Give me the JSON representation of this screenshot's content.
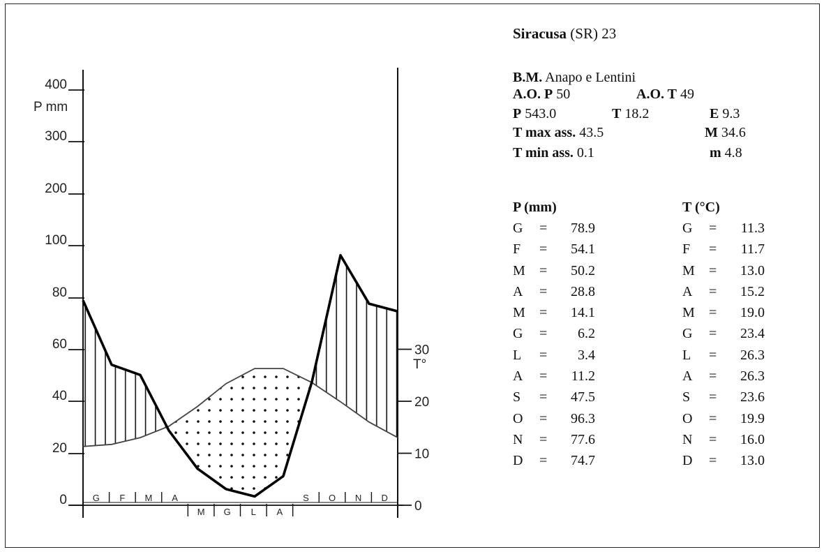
{
  "station": {
    "name": "Siracusa",
    "province": "(SR)",
    "number": "23",
    "bm_label": "B.M.",
    "bm_value": "Anapo e Lentini",
    "aop_label": "A.O. P",
    "aop_value": "50",
    "aot_label": "A.O. T",
    "aot_value": "49",
    "p_label": "P",
    "p_value": "543.0",
    "t_label": "T",
    "t_value": "18.2",
    "e_label": "E",
    "e_value": "9.3",
    "tmax_label": "T max ass.",
    "tmax_value": "43.5",
    "M_label": "M",
    "M_value": "34.6",
    "tmin_label": "T min ass.",
    "tmin_value": "0.1",
    "m_label": "m",
    "m_value": "4.8"
  },
  "tables": {
    "p_header": "P (mm)",
    "t_header": "T (°C)",
    "eq": "=",
    "months": [
      "G",
      "F",
      "M",
      "A",
      "M",
      "G",
      "L",
      "A",
      "S",
      "O",
      "N",
      "D"
    ],
    "p_values": [
      "78.9",
      "54.1",
      "50.2",
      "28.8",
      "14.1",
      "6.2",
      "3.4",
      "11.2",
      "47.5",
      "96.3",
      "77.6",
      "74.7"
    ],
    "t_values": [
      "11.3",
      "11.7",
      "13.0",
      "15.2",
      "19.0",
      "23.4",
      "26.3",
      "26.3",
      "23.6",
      "19.9",
      "16.0",
      "13.0"
    ]
  },
  "chart_data": {
    "type": "line",
    "categories": [
      "G",
      "F",
      "M",
      "A",
      "M",
      "G",
      "L",
      "A",
      "S",
      "O",
      "N",
      "D"
    ],
    "series": [
      {
        "values": [
          78.9,
          54.1,
          50.2,
          28.8,
          14.1,
          6.2,
          3.4,
          11.2,
          47.5,
          96.3,
          77.6,
          74.7
        ]
      },
      {
        "values": [
          11.3,
          11.7,
          13.0,
          15.2,
          19.0,
          23.4,
          26.3,
          26.3,
          23.6,
          19.9,
          16.0,
          13.0
        ]
      }
    ],
    "left_axis": {
      "label": "P mm",
      "ticks": [
        "0",
        "20",
        "40",
        "60",
        "80",
        "100",
        "200",
        "300",
        "400"
      ],
      "scale": "0-100 linear, then 100-400 compressed"
    },
    "right_axis": {
      "label": "T°",
      "ticks": [
        "0",
        "10",
        "20",
        "30"
      ],
      "ylim": [
        0,
        30
      ]
    },
    "month_labels_top": [
      "G",
      "F",
      "M",
      "A",
      "S",
      "O",
      "N",
      "D"
    ],
    "month_labels_bottom": [
      "M",
      "G",
      "L",
      "A"
    ],
    "fill_wet": "vertical-hatching",
    "fill_dry": "dots",
    "grid": false,
    "legend": "none"
  }
}
